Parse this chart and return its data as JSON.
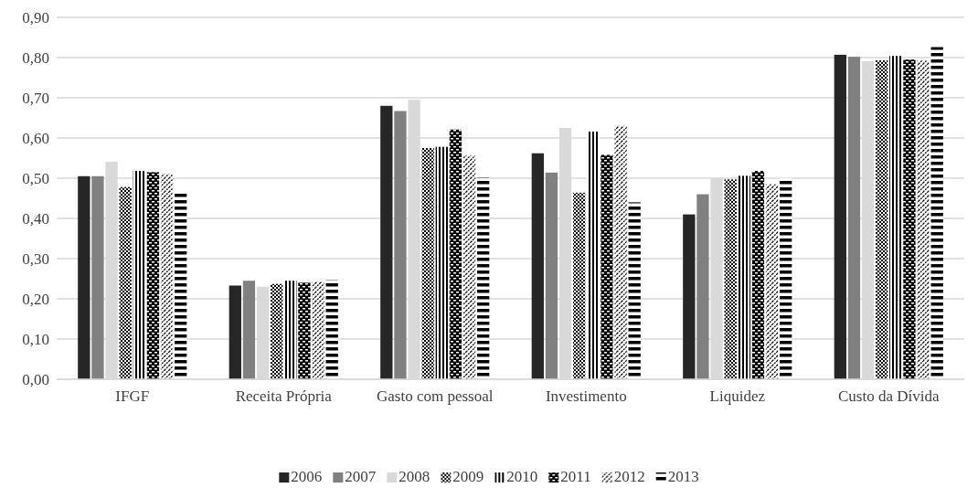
{
  "chart_data": {
    "type": "bar",
    "categories": [
      "IFGF",
      "Receita Própria",
      "Gasto com pessoal",
      "Investimento",
      "Liquidez",
      "Custo da Dívida"
    ],
    "series": [
      {
        "name": "2006",
        "color": "#262626",
        "values": [
          0.505,
          0.233,
          0.68,
          0.562,
          0.41,
          0.807
        ]
      },
      {
        "name": "2007",
        "color": "#808080",
        "values": [
          0.505,
          0.245,
          0.667,
          0.514,
          0.46,
          0.802
        ]
      },
      {
        "name": "2008",
        "color": "#d9d9d9",
        "values": [
          0.541,
          0.23,
          0.695,
          0.625,
          0.5,
          0.791
        ]
      },
      {
        "name": "2009",
        "color": "#000000",
        "values": [
          0.478,
          0.237,
          0.575,
          0.464,
          0.497,
          0.793
        ]
      },
      {
        "name": "2010",
        "color": "#000000",
        "values": [
          0.518,
          0.245,
          0.578,
          0.616,
          0.506,
          0.804
        ]
      },
      {
        "name": "2011",
        "color": "#000000",
        "values": [
          0.515,
          0.24,
          0.621,
          0.558,
          0.518,
          0.795
        ]
      },
      {
        "name": "2012",
        "color": "#000000",
        "values": [
          0.51,
          0.243,
          0.556,
          0.63,
          0.485,
          0.793
        ]
      },
      {
        "name": "2013",
        "color": "#000000",
        "values": [
          0.463,
          0.247,
          0.502,
          0.44,
          0.5,
          0.826
        ]
      }
    ],
    "ylim": [
      0,
      0.9
    ],
    "yticks": [
      {
        "value": 0,
        "label": "0,00"
      },
      {
        "value": 0.1,
        "label": "0,10"
      },
      {
        "value": 0.2,
        "label": "0,20"
      },
      {
        "value": 0.3,
        "label": "0,30"
      },
      {
        "value": 0.4,
        "label": "0,40"
      },
      {
        "value": 0.5,
        "label": "0,50"
      },
      {
        "value": 0.6,
        "label": "0,60"
      },
      {
        "value": 0.7,
        "label": "0,70"
      },
      {
        "value": 0.8,
        "label": "0,80"
      },
      {
        "value": 0.9,
        "label": "0,90"
      }
    ],
    "grid": "y",
    "legend": "bottom"
  }
}
